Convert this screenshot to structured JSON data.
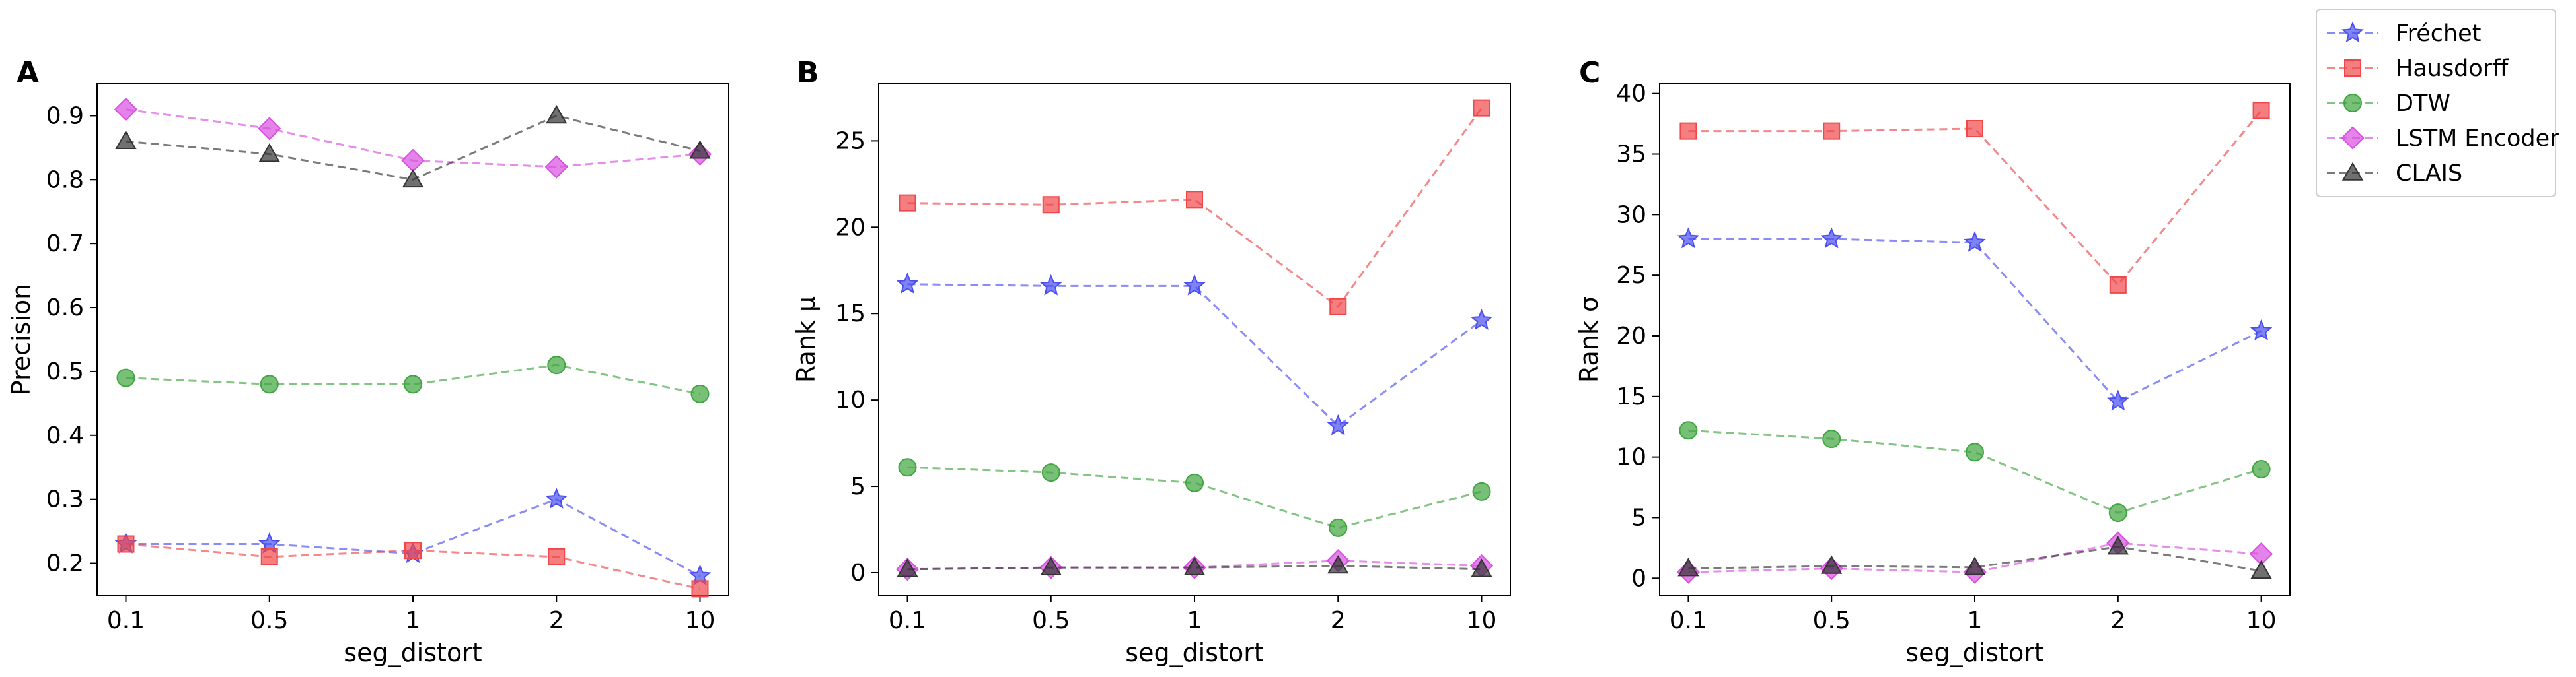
{
  "chart_data": [
    {
      "panel": "A",
      "type": "line",
      "title": "",
      "xlabel": "seg_distort",
      "ylabel": "Precision",
      "categories": [
        "0.1",
        "0.5",
        "1",
        "2",
        "10"
      ],
      "ylim": [
        0.15,
        0.95
      ],
      "yticks": [
        0.2,
        0.3,
        0.4,
        0.5,
        0.6,
        0.7,
        0.8,
        0.9
      ],
      "ytick_labels": [
        "0.2",
        "0.3",
        "0.4",
        "0.5",
        "0.6",
        "0.7",
        "0.8",
        "0.9"
      ],
      "grid": false,
      "series": [
        {
          "name": "Fréchet",
          "values": [
            0.23,
            0.23,
            0.215,
            0.3,
            0.18
          ]
        },
        {
          "name": "Hausdorff",
          "values": [
            0.23,
            0.21,
            0.22,
            0.21,
            0.16
          ]
        },
        {
          "name": "DTW",
          "values": [
            0.49,
            0.48,
            0.48,
            0.51,
            0.465
          ]
        },
        {
          "name": "LSTM Encoder",
          "values": [
            0.91,
            0.88,
            0.83,
            0.82,
            0.84
          ]
        },
        {
          "name": "CLAIS",
          "values": [
            0.86,
            0.84,
            0.8,
            0.9,
            0.845
          ]
        }
      ]
    },
    {
      "panel": "B",
      "type": "line",
      "title": "",
      "xlabel": "seg_distort",
      "ylabel": "Rank μ",
      "categories": [
        "0.1",
        "0.5",
        "1",
        "2",
        "10"
      ],
      "ylim": [
        -1.3,
        28.3
      ],
      "yticks": [
        0,
        5,
        10,
        15,
        20,
        25
      ],
      "ytick_labels": [
        "0",
        "5",
        "10",
        "15",
        "20",
        "25"
      ],
      "grid": false,
      "series": [
        {
          "name": "Fréchet",
          "values": [
            16.7,
            16.6,
            16.6,
            8.5,
            14.6
          ]
        },
        {
          "name": "Hausdorff",
          "values": [
            21.4,
            21.3,
            21.6,
            15.4,
            26.9
          ]
        },
        {
          "name": "DTW",
          "values": [
            6.1,
            5.8,
            5.2,
            2.6,
            4.7
          ]
        },
        {
          "name": "LSTM Encoder",
          "values": [
            0.2,
            0.3,
            0.3,
            0.7,
            0.4
          ]
        },
        {
          "name": "CLAIS",
          "values": [
            0.2,
            0.3,
            0.3,
            0.4,
            0.2
          ]
        }
      ]
    },
    {
      "panel": "C",
      "type": "line",
      "title": "",
      "xlabel": "seg_distort",
      "ylabel": "Rank σ",
      "categories": [
        "0.1",
        "0.5",
        "1",
        "2",
        "10"
      ],
      "ylim": [
        -1.4,
        40.8
      ],
      "yticks": [
        0,
        5,
        10,
        15,
        20,
        25,
        30,
        35,
        40
      ],
      "ytick_labels": [
        "0",
        "5",
        "10",
        "15",
        "20",
        "25",
        "30",
        "35",
        "40"
      ],
      "grid": false,
      "series": [
        {
          "name": "Fréchet",
          "values": [
            28.0,
            28.0,
            27.7,
            14.6,
            20.4
          ]
        },
        {
          "name": "Hausdorff",
          "values": [
            36.9,
            36.9,
            37.1,
            24.2,
            38.6
          ]
        },
        {
          "name": "DTW",
          "values": [
            12.2,
            11.5,
            10.4,
            5.4,
            9.0
          ]
        },
        {
          "name": "LSTM Encoder",
          "values": [
            0.5,
            0.8,
            0.5,
            2.9,
            2.0
          ]
        },
        {
          "name": "CLAIS",
          "values": [
            0.8,
            1.0,
            0.9,
            2.6,
            0.6
          ]
        }
      ]
    }
  ],
  "legend": {
    "placement": "right",
    "entries": [
      "Fréchet",
      "Hausdorff",
      "DTW",
      "LSTM Encoder",
      "CLAIS"
    ]
  },
  "styles": {
    "Fréchet": {
      "color": "#4a4ef0",
      "marker": "star"
    },
    "Hausdorff": {
      "color": "#f0474a",
      "marker": "square"
    },
    "DTW": {
      "color": "#3fa53f",
      "marker": "circle"
    },
    "LSTM Encoder": {
      "color": "#d94fe0",
      "marker": "diamond"
    },
    "CLAIS": {
      "color": "#333333",
      "marker": "triangle"
    }
  }
}
